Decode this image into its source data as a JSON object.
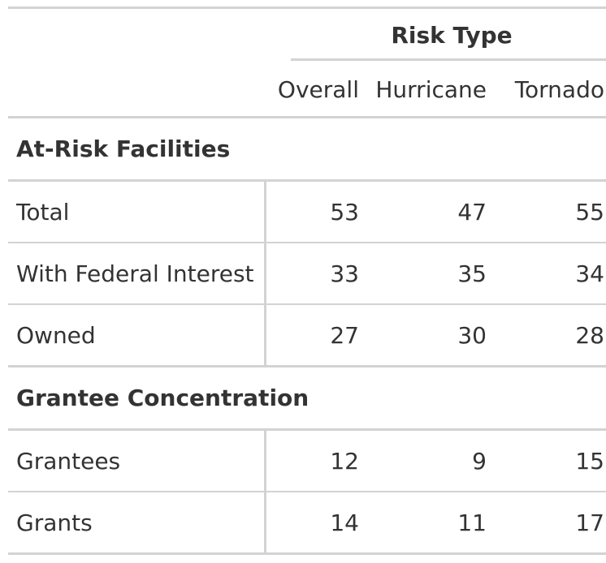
{
  "table": {
    "spanner_label": "Risk Type",
    "columns": [
      "Overall",
      "Hurricane",
      "Tornado"
    ],
    "groups": [
      {
        "label": "At-Risk Facilities",
        "rows": [
          {
            "label": "Total",
            "values": [
              "53",
              "47",
              "55"
            ]
          },
          {
            "label": "With Federal Interest",
            "values": [
              "33",
              "35",
              "34"
            ]
          },
          {
            "label": "Owned",
            "values": [
              "27",
              "30",
              "28"
            ]
          }
        ]
      },
      {
        "label": "Grantee Concentration",
        "rows": [
          {
            "label": "Grantees",
            "values": [
              "12",
              "9",
              "15"
            ]
          },
          {
            "label": "Grants",
            "values": [
              "14",
              "11",
              "17"
            ]
          }
        ]
      }
    ],
    "colors": {
      "text": "#333333",
      "rule": "#d3d3d3",
      "background": "#ffffff"
    }
  }
}
